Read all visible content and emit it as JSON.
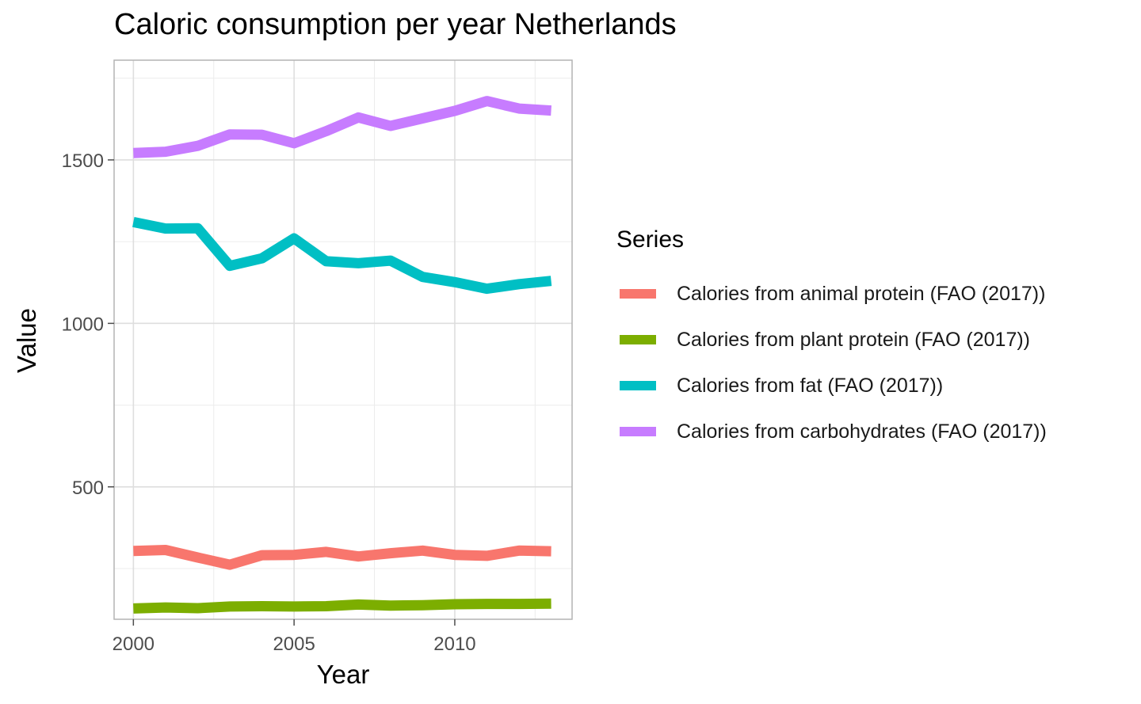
{
  "chart_data": {
    "type": "line",
    "title": "Caloric consumption per year Netherlands",
    "xlabel": "Year",
    "ylabel": "Value",
    "x": [
      2000,
      2001,
      2002,
      2003,
      2004,
      2005,
      2006,
      2007,
      2008,
      2009,
      2010,
      2011,
      2012,
      2013
    ],
    "xlim": [
      1999.4,
      2013.65
    ],
    "ylim": [
      95,
      1805
    ],
    "xticks": [
      "2000",
      "2005",
      "2010"
    ],
    "yticks": [
      "500",
      "1000",
      "1500"
    ],
    "grid": true,
    "legend": {
      "title": "Series",
      "position": "right"
    },
    "series": [
      {
        "name": "Calories from animal protein (FAO (2017))",
        "color": "#F8766D",
        "values": [
          304,
          307,
          284,
          262,
          291,
          292,
          301,
          287,
          297,
          305,
          292,
          289,
          305,
          303
        ]
      },
      {
        "name": "Calories from plant protein (FAO (2017))",
        "color": "#7CAE00",
        "values": [
          128,
          131,
          129,
          134,
          135,
          134,
          135,
          140,
          137,
          138,
          141,
          142,
          142,
          143
        ]
      },
      {
        "name": "Calories from fat (FAO (2017))",
        "color": "#00BFC4",
        "values": [
          1310,
          1290,
          1291,
          1176,
          1199,
          1260,
          1190,
          1184,
          1192,
          1142,
          1126,
          1106,
          1120,
          1130
        ]
      },
      {
        "name": "Calories from carbohydrates (FAO (2017))",
        "color": "#C77CFF",
        "values": [
          1521,
          1525,
          1543,
          1578,
          1577,
          1551,
          1588,
          1630,
          1604,
          1627,
          1650,
          1680,
          1657,
          1651
        ]
      }
    ]
  }
}
